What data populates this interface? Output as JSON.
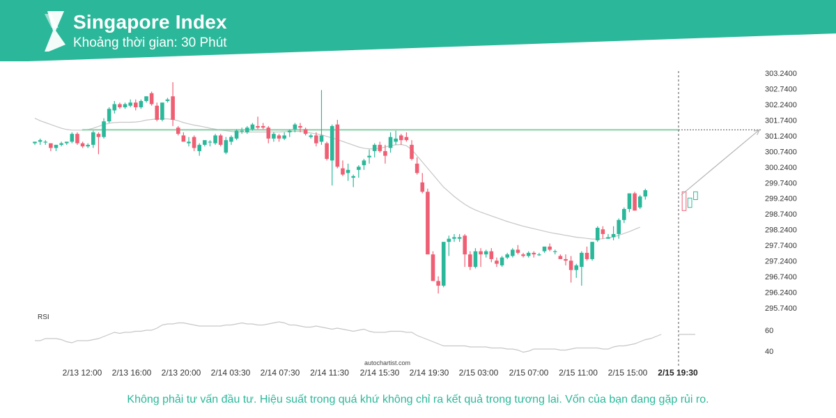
{
  "header": {
    "title": "Singapore Index",
    "subtitle": "Khoảng thời gian: 30 Phút",
    "band_color": "#2bb89a",
    "logo_icon": "autochartist-logo-icon"
  },
  "chart_data": {
    "type": "candlestick",
    "title": "Singapore Index",
    "interval": "30 Phút",
    "y_ticks": [
      "303.2400",
      "302.7400",
      "302.2400",
      "301.7400",
      "301.2400",
      "300.7400",
      "300.2400",
      "299.7400",
      "299.2400",
      "298.7400",
      "298.2400",
      "297.7400",
      "297.2400",
      "296.7400",
      "296.2400",
      "295.7400"
    ],
    "ylim": [
      295.5,
      303.3
    ],
    "x_ticks": [
      "2/13 12:00",
      "2/13 16:00",
      "2/13 20:00",
      "2/14 03:30",
      "2/14 07:30",
      "2/14 11:30",
      "2/14 15:30",
      "2/14 19:30",
      "2/15 03:00",
      "2/15 07:00",
      "2/15 11:00",
      "2/15 15:00",
      "2/15 19:30"
    ],
    "highlighted_x_tick": "2/15 19:30",
    "up_color": "#2bb89a",
    "down_color": "#ef5f74",
    "ma_color": "#c6c6c6",
    "level_color": "#86cea5",
    "level_value": 301.43,
    "candles": [
      [
        301.0,
        301.05,
        300.95,
        301.05
      ],
      [
        301.05,
        301.15,
        300.95,
        301.1
      ],
      [
        301.05,
        301.1,
        300.95,
        301.05
      ],
      [
        301.0,
        301.0,
        300.75,
        300.85
      ],
      [
        300.85,
        300.95,
        300.75,
        300.95
      ],
      [
        300.95,
        301.05,
        300.9,
        301.0
      ],
      [
        301.0,
        301.05,
        300.95,
        301.05
      ],
      [
        301.05,
        301.35,
        301.0,
        301.3
      ],
      [
        301.3,
        301.35,
        300.95,
        301.0
      ],
      [
        301.0,
        301.05,
        300.85,
        300.9
      ],
      [
        300.9,
        301.0,
        300.85,
        300.95
      ],
      [
        300.95,
        301.4,
        300.85,
        301.35
      ],
      [
        301.3,
        301.35,
        300.65,
        301.2
      ],
      [
        301.2,
        301.8,
        301.15,
        301.7
      ],
      [
        301.7,
        302.15,
        301.65,
        302.1
      ],
      [
        302.05,
        302.35,
        301.95,
        302.25
      ],
      [
        302.25,
        302.3,
        302.1,
        302.15
      ],
      [
        302.15,
        302.3,
        302.1,
        302.25
      ],
      [
        302.2,
        302.4,
        302.15,
        302.3
      ],
      [
        302.3,
        302.4,
        302.05,
        302.15
      ],
      [
        302.15,
        302.4,
        302.1,
        302.35
      ],
      [
        302.35,
        302.5,
        302.3,
        302.5
      ],
      [
        302.6,
        302.65,
        302.2,
        302.25
      ],
      [
        302.2,
        302.3,
        301.7,
        301.75
      ],
      [
        301.75,
        302.3,
        301.7,
        302.3
      ],
      [
        302.35,
        302.45,
        302.3,
        302.4
      ],
      [
        302.5,
        302.95,
        301.55,
        301.75
      ],
      [
        301.5,
        301.55,
        301.25,
        301.3
      ],
      [
        301.25,
        301.35,
        301.05,
        301.05
      ],
      [
        301.0,
        301.2,
        300.9,
        301.05
      ],
      [
        301.2,
        301.25,
        300.75,
        300.85
      ],
      [
        300.75,
        301.0,
        300.6,
        300.95
      ],
      [
        300.95,
        301.1,
        300.9,
        301.1
      ],
      [
        301.05,
        301.1,
        300.9,
        301.05
      ],
      [
        301.0,
        301.3,
        300.95,
        301.25
      ],
      [
        301.25,
        301.3,
        300.9,
        300.95
      ],
      [
        300.7,
        301.2,
        300.65,
        301.1
      ],
      [
        301.05,
        301.25,
        300.95,
        301.2
      ],
      [
        301.15,
        301.45,
        301.1,
        301.4
      ],
      [
        301.4,
        301.5,
        301.3,
        301.4
      ],
      [
        301.35,
        301.55,
        301.3,
        301.5
      ],
      [
        301.45,
        301.65,
        301.4,
        301.6
      ],
      [
        301.55,
        301.85,
        301.45,
        301.5
      ],
      [
        301.55,
        301.65,
        301.45,
        301.5
      ],
      [
        301.5,
        301.55,
        301.0,
        301.15
      ],
      [
        301.15,
        301.35,
        301.05,
        301.3
      ],
      [
        301.25,
        301.3,
        301.05,
        301.15
      ],
      [
        301.15,
        301.35,
        301.1,
        301.25
      ],
      [
        301.35,
        301.45,
        301.2,
        301.4
      ],
      [
        301.45,
        301.65,
        301.35,
        301.6
      ],
      [
        301.55,
        301.65,
        301.35,
        301.5
      ],
      [
        301.45,
        301.5,
        301.25,
        301.3
      ],
      [
        301.2,
        301.3,
        301.15,
        301.25
      ],
      [
        301.25,
        301.35,
        300.9,
        301.0
      ],
      [
        301.05,
        302.7,
        300.95,
        301.25
      ],
      [
        301.0,
        301.05,
        300.45,
        300.5
      ],
      [
        300.45,
        301.6,
        299.65,
        301.55
      ],
      [
        301.6,
        301.75,
        300.2,
        300.25
      ],
      [
        300.2,
        300.45,
        299.95,
        300.0
      ],
      [
        300.05,
        300.35,
        299.8,
        300.15
      ],
      [
        299.9,
        300.0,
        299.6,
        299.95
      ],
      [
        300.15,
        300.3,
        299.9,
        300.25
      ],
      [
        300.3,
        300.5,
        300.15,
        300.45
      ],
      [
        300.55,
        300.8,
        300.35,
        300.6
      ],
      [
        300.75,
        301.0,
        300.55,
        300.95
      ],
      [
        300.95,
        301.05,
        300.7,
        300.75
      ],
      [
        300.75,
        300.95,
        300.35,
        300.6
      ],
      [
        300.85,
        301.35,
        300.7,
        301.2
      ],
      [
        301.05,
        301.4,
        300.95,
        301.15
      ],
      [
        301.25,
        301.3,
        300.95,
        301.1
      ],
      [
        301.2,
        301.35,
        301.05,
        301.1
      ],
      [
        300.95,
        301.1,
        300.45,
        300.5
      ],
      [
        300.35,
        300.55,
        300.0,
        300.05
      ],
      [
        299.75,
        300.05,
        299.4,
        299.45
      ],
      [
        299.45,
        299.55,
        297.45,
        297.45
      ],
      [
        297.45,
        297.55,
        296.6,
        296.6
      ],
      [
        296.6,
        296.75,
        296.2,
        296.45
      ],
      [
        296.45,
        297.85,
        296.4,
        297.85
      ],
      [
        297.85,
        298.05,
        297.4,
        297.95
      ],
      [
        297.95,
        298.1,
        297.85,
        298.0
      ],
      [
        297.95,
        298.1,
        297.85,
        298.0
      ],
      [
        298.05,
        298.1,
        297.05,
        297.45
      ],
      [
        297.45,
        297.55,
        296.95,
        297.05
      ],
      [
        297.05,
        297.65,
        297.0,
        297.55
      ],
      [
        297.55,
        297.65,
        297.05,
        297.45
      ],
      [
        297.45,
        297.6,
        297.35,
        297.55
      ],
      [
        297.55,
        297.65,
        297.2,
        297.3
      ],
      [
        297.25,
        297.35,
        297.05,
        297.15
      ],
      [
        297.1,
        297.4,
        297.05,
        297.35
      ],
      [
        297.35,
        297.5,
        297.3,
        297.45
      ],
      [
        297.4,
        297.65,
        297.35,
        297.6
      ],
      [
        297.6,
        297.75,
        297.45,
        297.5
      ],
      [
        297.45,
        297.5,
        297.35,
        297.4
      ],
      [
        297.4,
        297.55,
        297.35,
        297.5
      ],
      [
        297.5,
        297.55,
        297.35,
        297.45
      ],
      [
        297.45,
        297.5,
        297.4,
        297.45
      ],
      [
        297.55,
        297.7,
        297.5,
        297.7
      ],
      [
        297.7,
        297.8,
        297.55,
        297.6
      ],
      [
        297.55,
        297.6,
        297.45,
        297.55
      ],
      [
        297.4,
        297.45,
        297.3,
        297.3
      ],
      [
        297.3,
        297.45,
        297.1,
        297.25
      ],
      [
        297.25,
        297.4,
        296.55,
        296.95
      ],
      [
        296.95,
        297.15,
        296.7,
        297.1
      ],
      [
        297.05,
        297.55,
        296.45,
        297.5
      ],
      [
        297.5,
        297.7,
        297.25,
        297.3
      ],
      [
        297.3,
        297.85,
        297.25,
        297.85
      ],
      [
        297.9,
        298.35,
        297.85,
        298.3
      ],
      [
        298.25,
        298.35,
        297.95,
        298.1
      ],
      [
        297.95,
        298.1,
        297.95,
        298.0
      ],
      [
        298.0,
        298.35,
        297.9,
        298.1
      ],
      [
        298.1,
        298.6,
        297.95,
        298.55
      ],
      [
        298.55,
        298.95,
        298.45,
        298.9
      ],
      [
        298.9,
        299.4,
        298.8,
        299.4
      ],
      [
        299.4,
        299.45,
        298.85,
        298.85
      ],
      [
        298.95,
        299.35,
        298.9,
        299.3
      ],
      [
        299.3,
        299.55,
        299.2,
        299.5
      ]
    ],
    "ma": [
      301.8,
      301.72,
      301.66,
      301.6,
      301.54,
      301.48,
      301.44,
      301.42,
      301.42,
      301.42,
      301.44,
      301.48,
      301.54,
      301.6,
      301.64,
      301.66,
      301.67,
      301.67,
      301.67,
      301.68,
      301.7,
      301.74,
      301.76,
      301.78,
      301.78,
      301.78,
      301.76,
      301.72,
      301.66,
      301.62,
      301.58,
      301.55,
      301.52,
      301.48,
      301.45,
      301.42,
      301.4,
      301.38,
      301.36,
      301.36,
      301.36,
      301.36,
      301.36,
      301.36,
      301.36,
      301.36,
      301.36,
      301.37,
      301.38,
      301.38,
      301.38,
      301.36,
      301.33,
      301.3,
      301.27,
      301.22,
      301.17,
      301.12,
      301.06,
      301.0,
      300.94,
      300.88,
      300.84,
      300.82,
      300.82,
      300.84,
      300.88,
      300.92,
      300.95,
      300.96,
      300.92,
      300.8,
      300.6,
      300.4,
      300.2,
      300.0,
      299.8,
      299.6,
      299.45,
      299.3,
      299.17,
      299.05,
      298.95,
      298.87,
      298.8,
      298.74,
      298.68,
      298.62,
      298.56,
      298.5,
      298.45,
      298.4,
      298.35,
      298.31,
      298.27,
      298.23,
      298.19,
      298.15,
      298.12,
      298.09,
      298.06,
      298.03,
      298.0,
      297.98,
      297.96,
      297.94,
      297.94,
      297.95,
      297.98,
      298.01,
      298.06,
      298.12,
      298.18,
      298.25,
      298.32
    ],
    "projection": {
      "from": 299.35,
      "to": 301.43
    },
    "rsi": {
      "label": "RSI",
      "ticks": [
        "60",
        "40"
      ],
      "ylim": [
        33,
        75
      ],
      "values": [
        50,
        50,
        52,
        52,
        52,
        51,
        49,
        48,
        50,
        50,
        50,
        51,
        52,
        54,
        56,
        58,
        57,
        58,
        58,
        59,
        59,
        60,
        60,
        62,
        65,
        66,
        66,
        67,
        67,
        66,
        65,
        64,
        64,
        64,
        64,
        64,
        65,
        65,
        66,
        67,
        66,
        66,
        65,
        65,
        66,
        67,
        68,
        67,
        65,
        65,
        64,
        63,
        63,
        64,
        63,
        62,
        61,
        62,
        61,
        60,
        59,
        60,
        61,
        59,
        58,
        58,
        58,
        59,
        59,
        59,
        58,
        58,
        55,
        53,
        51,
        49,
        47,
        45,
        45,
        45,
        45,
        45,
        44,
        44,
        44,
        44,
        43,
        43,
        43,
        42,
        42,
        41,
        39,
        40,
        42,
        42,
        42,
        42,
        42,
        41,
        41,
        42,
        43,
        43,
        43,
        43,
        43,
        42,
        42,
        44,
        45,
        45,
        46,
        47,
        49,
        51,
        52,
        54,
        56
      ]
    },
    "watermark": "autochartist.com"
  },
  "footer": {
    "disclaimer": "Không phải tư vấn đầu tư. Hiệu suất trong quá khứ không chỉ ra kết quả trong tương lai. Vốn của bạn đang gặp rủi ro."
  }
}
